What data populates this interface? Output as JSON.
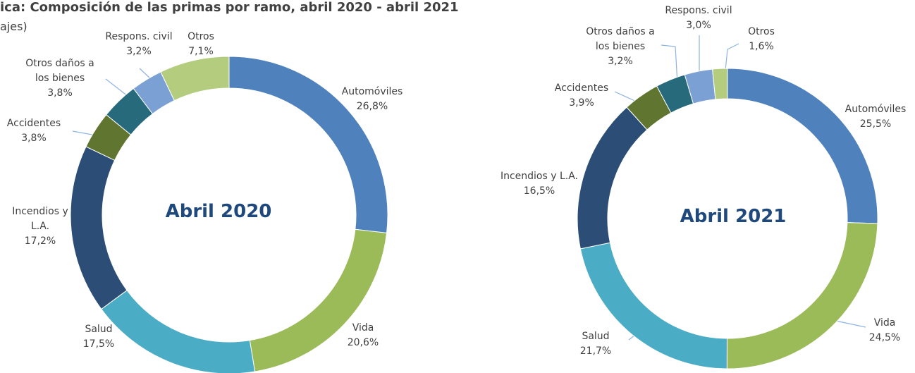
{
  "header": {
    "title": "ica: Composición de las primas por ramo, abril 2020 - abril 2021",
    "subtitle": "ajes)"
  },
  "chart_data": [
    {
      "type": "donut",
      "title": "Abril 2020",
      "categories": [
        "Automóviles",
        "Vida",
        "Salud",
        "Incendios y L.A.",
        "Accidentes",
        "Otros daños a los bienes",
        "Respons. civil",
        "Otros"
      ],
      "values": [
        26.8,
        20.6,
        17.5,
        17.2,
        3.8,
        3.8,
        3.2,
        7.1
      ],
      "value_labels": [
        "26,8%",
        "20,6%",
        "17,5%",
        "17,2%",
        "3,8%",
        "3,8%",
        "3,2%",
        "7,1%"
      ],
      "colors": [
        "#4f81bd",
        "#9bbb59",
        "#4bacc6",
        "#2c4d75",
        "#5f7530",
        "#276a7c",
        "#7ba0d4",
        "#b3cc7e"
      ]
    },
    {
      "type": "donut",
      "title": "Abril 2021",
      "categories": [
        "Automóviles",
        "Vida",
        "Salud",
        "Incendios y L.A.",
        "Accidentes",
        "Otros daños a los bienes",
        "Respons. civil",
        "Otros"
      ],
      "values": [
        25.5,
        24.5,
        21.7,
        16.5,
        3.9,
        3.2,
        3.0,
        1.6
      ],
      "value_labels": [
        "25,5%",
        "24,5%",
        "21,7%",
        "16,5%",
        "3,9%",
        "3,2%",
        "3,0%",
        "1,6%"
      ],
      "colors": [
        "#4f81bd",
        "#9bbb59",
        "#4bacc6",
        "#2c4d75",
        "#5f7530",
        "#276a7c",
        "#7ba0d4",
        "#b3cc7e"
      ]
    }
  ]
}
